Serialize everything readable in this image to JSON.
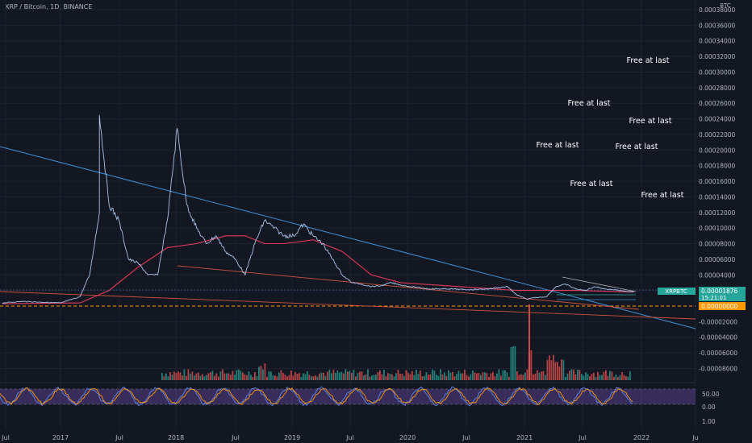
{
  "header": {
    "symbol_title": "XRP / Bitcoin, 1D, BINANCE",
    "currency": "BTC"
  },
  "colors": {
    "background": "#131722",
    "grid": "#1e2230",
    "price_line": "#aac4e8",
    "trendline_blue": "#3d8fd6",
    "ma_line": "#e23a5c",
    "support_line": "#d0533a",
    "zero_line": "#ff9800",
    "volume_up": "#26a69a",
    "volume_down": "#ef5350",
    "rsi_fill": "#7e57c2",
    "rsi_line_1": "#5b7fe0",
    "rsi_line_2": "#ff9800",
    "label_green": "#26a69a",
    "label_orange": "#ff9800"
  },
  "price_labels": {
    "symbol_badge": "XRPBTC",
    "last_price": "0.00001876",
    "countdown": "15:21:01",
    "zero_value": "0.00000000"
  },
  "annotations": [
    "Free at last",
    "Free at last",
    "Free at last",
    "Free at last",
    "Free at last",
    "Free at last",
    "Free at last"
  ],
  "chart_data": {
    "type": "line",
    "ylabel": "BTC",
    "ylim": [
      -0.0001,
      0.00038
    ],
    "y_ticks": [
      "0.00038000",
      "0.00036000",
      "0.00034000",
      "0.00032000",
      "0.00030000",
      "0.00028000",
      "0.00026000",
      "0.00024000",
      "0.00022000",
      "0.00020000",
      "0.00018000",
      "0.00016000",
      "0.00014000",
      "0.00012000",
      "0.00010000",
      "0.00008000",
      "0.00006000",
      "0.00004000",
      "0.00002000",
      "-0.00002000",
      "-0.00004000",
      "-0.00006000",
      "-0.00008000"
    ],
    "x_ticks": [
      "Jul",
      "2017",
      "Jul",
      "2018",
      "Jul",
      "2019",
      "Jul",
      "2020",
      "Jul",
      "2021",
      "Jul",
      "2022",
      "Ju"
    ],
    "price_series": {
      "name": "XRPBTC",
      "x": [
        "2016-07",
        "2016-09",
        "2016-11",
        "2017-01",
        "2017-03",
        "2017-04",
        "2017-05",
        "2017-05",
        "2017-06",
        "2017-07",
        "2017-08",
        "2017-09",
        "2017-10",
        "2017-11",
        "2017-12",
        "2018-01",
        "2018-02",
        "2018-03",
        "2018-04",
        "2018-05",
        "2018-06",
        "2018-07",
        "2018-08",
        "2018-09",
        "2018-10",
        "2018-11",
        "2018-12",
        "2019-01",
        "2019-02",
        "2019-03",
        "2019-04",
        "2019-05",
        "2019-06",
        "2019-07",
        "2019-08",
        "2019-09",
        "2019-10",
        "2019-11",
        "2019-12",
        "2020-01",
        "2020-03",
        "2020-05",
        "2020-07",
        "2020-09",
        "2020-11",
        "2020-12",
        "2021-01",
        "2021-02",
        "2021-03",
        "2021-04",
        "2021-05",
        "2021-06",
        "2021-07",
        "2021-08",
        "2021-09",
        "2021-10",
        "2021-11",
        "2021-12"
      ],
      "y": [
        4e-06,
        6e-06,
        5e-06,
        4e-06,
        1.2e-05,
        4e-05,
        0.00012,
        0.000245,
        0.00013,
        0.00011,
        6e-05,
        5.5e-05,
        4e-05,
        4e-05,
        0.00011,
        0.000228,
        0.00013,
        0.0001,
        8e-05,
        9e-05,
        7e-05,
        6e-05,
        4e-05,
        8e-05,
        0.00011,
        0.0001,
        9e-05,
        9e-05,
        0.000105,
        9e-05,
        8e-05,
        6e-05,
        4e-05,
        3e-05,
        2.8e-05,
        2.5e-05,
        2.6e-05,
        3e-05,
        2.7e-05,
        2.5e-05,
        2.2e-05,
        2.2e-05,
        2.1e-05,
        2.2e-05,
        2.5e-05,
        1.4e-05,
        9e-06,
        1.1e-05,
        1.2e-05,
        2.5e-05,
        2.8e-05,
        2.2e-05,
        2e-05,
        2.5e-05,
        2.2e-05,
        2.1e-05,
        1.9e-05,
        1.876e-05
      ]
    },
    "ma_series": {
      "x": [
        "2016-07",
        "2017-03",
        "2017-06",
        "2017-09",
        "2017-12",
        "2018-03",
        "2018-06",
        "2018-08",
        "2018-10",
        "2018-12",
        "2019-03",
        "2019-06",
        "2019-09",
        "2019-12",
        "2020-06",
        "2020-12",
        "2021-06",
        "2021-12"
      ],
      "y": [
        3e-06,
        4e-06,
        2e-05,
        5e-05,
        7.5e-05,
        8e-05,
        9e-05,
        9e-05,
        8e-05,
        8e-05,
        8.5e-05,
        7e-05,
        4e-05,
        3e-05,
        2.5e-05,
        2e-05,
        2e-05,
        1.8e-05
      ]
    },
    "rsi_ticks": [
      "50.00",
      "0.00",
      "1.00"
    ]
  }
}
